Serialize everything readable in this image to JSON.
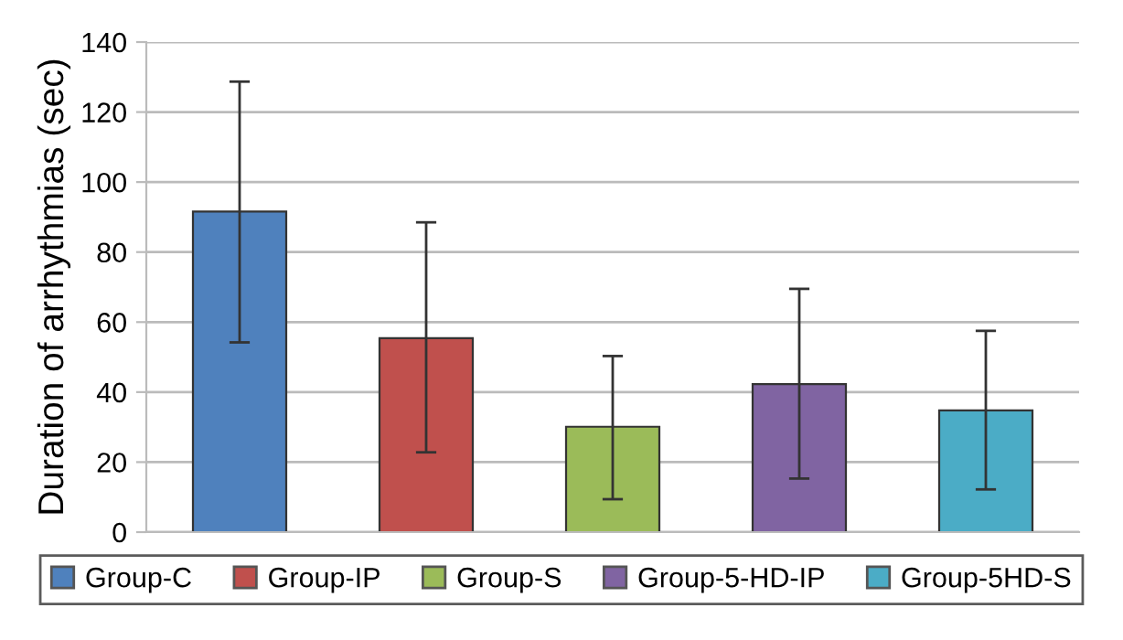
{
  "chart_data": {
    "type": "bar",
    "ylabel": "Duration of arrhythmias (sec)",
    "categories": [
      null,
      null,
      null,
      null,
      null
    ],
    "series": [
      {
        "name": "Group-C",
        "color": "#4f81bd",
        "values": [
          91.6,
          null,
          null,
          null,
          null
        ],
        "errors": [
          [
            54.2,
            128.7
          ],
          null,
          null,
          null,
          null
        ]
      },
      {
        "name": "Group-IP",
        "color": "#c0504d",
        "values": [
          null,
          55.4,
          null,
          null,
          null
        ],
        "errors": [
          null,
          [
            22.8,
            88.5
          ],
          null,
          null,
          null
        ]
      },
      {
        "name": "Group-S",
        "color": "#9bbb59",
        "values": [
          null,
          null,
          30.1,
          null,
          null
        ],
        "errors": [
          null,
          null,
          [
            9.4,
            50.3
          ],
          null,
          null
        ]
      },
      {
        "name": "Group-5-HD-IP",
        "color": "#8064a2",
        "values": [
          null,
          null,
          null,
          42.3,
          null
        ],
        "errors": [
          null,
          null,
          null,
          [
            15.3,
            69.5
          ],
          null
        ]
      },
      {
        "name": "Group-5HD-S",
        "color": "#4bacc6",
        "values": [
          null,
          null,
          null,
          null,
          34.8
        ],
        "errors": [
          null,
          null,
          null,
          null,
          [
            12.2,
            57.5
          ]
        ]
      }
    ],
    "ylim": [
      0,
      140
    ],
    "yticks": [
      0,
      20,
      40,
      60,
      80,
      100,
      120,
      140
    ],
    "grid": "y",
    "legend": "bottom"
  }
}
